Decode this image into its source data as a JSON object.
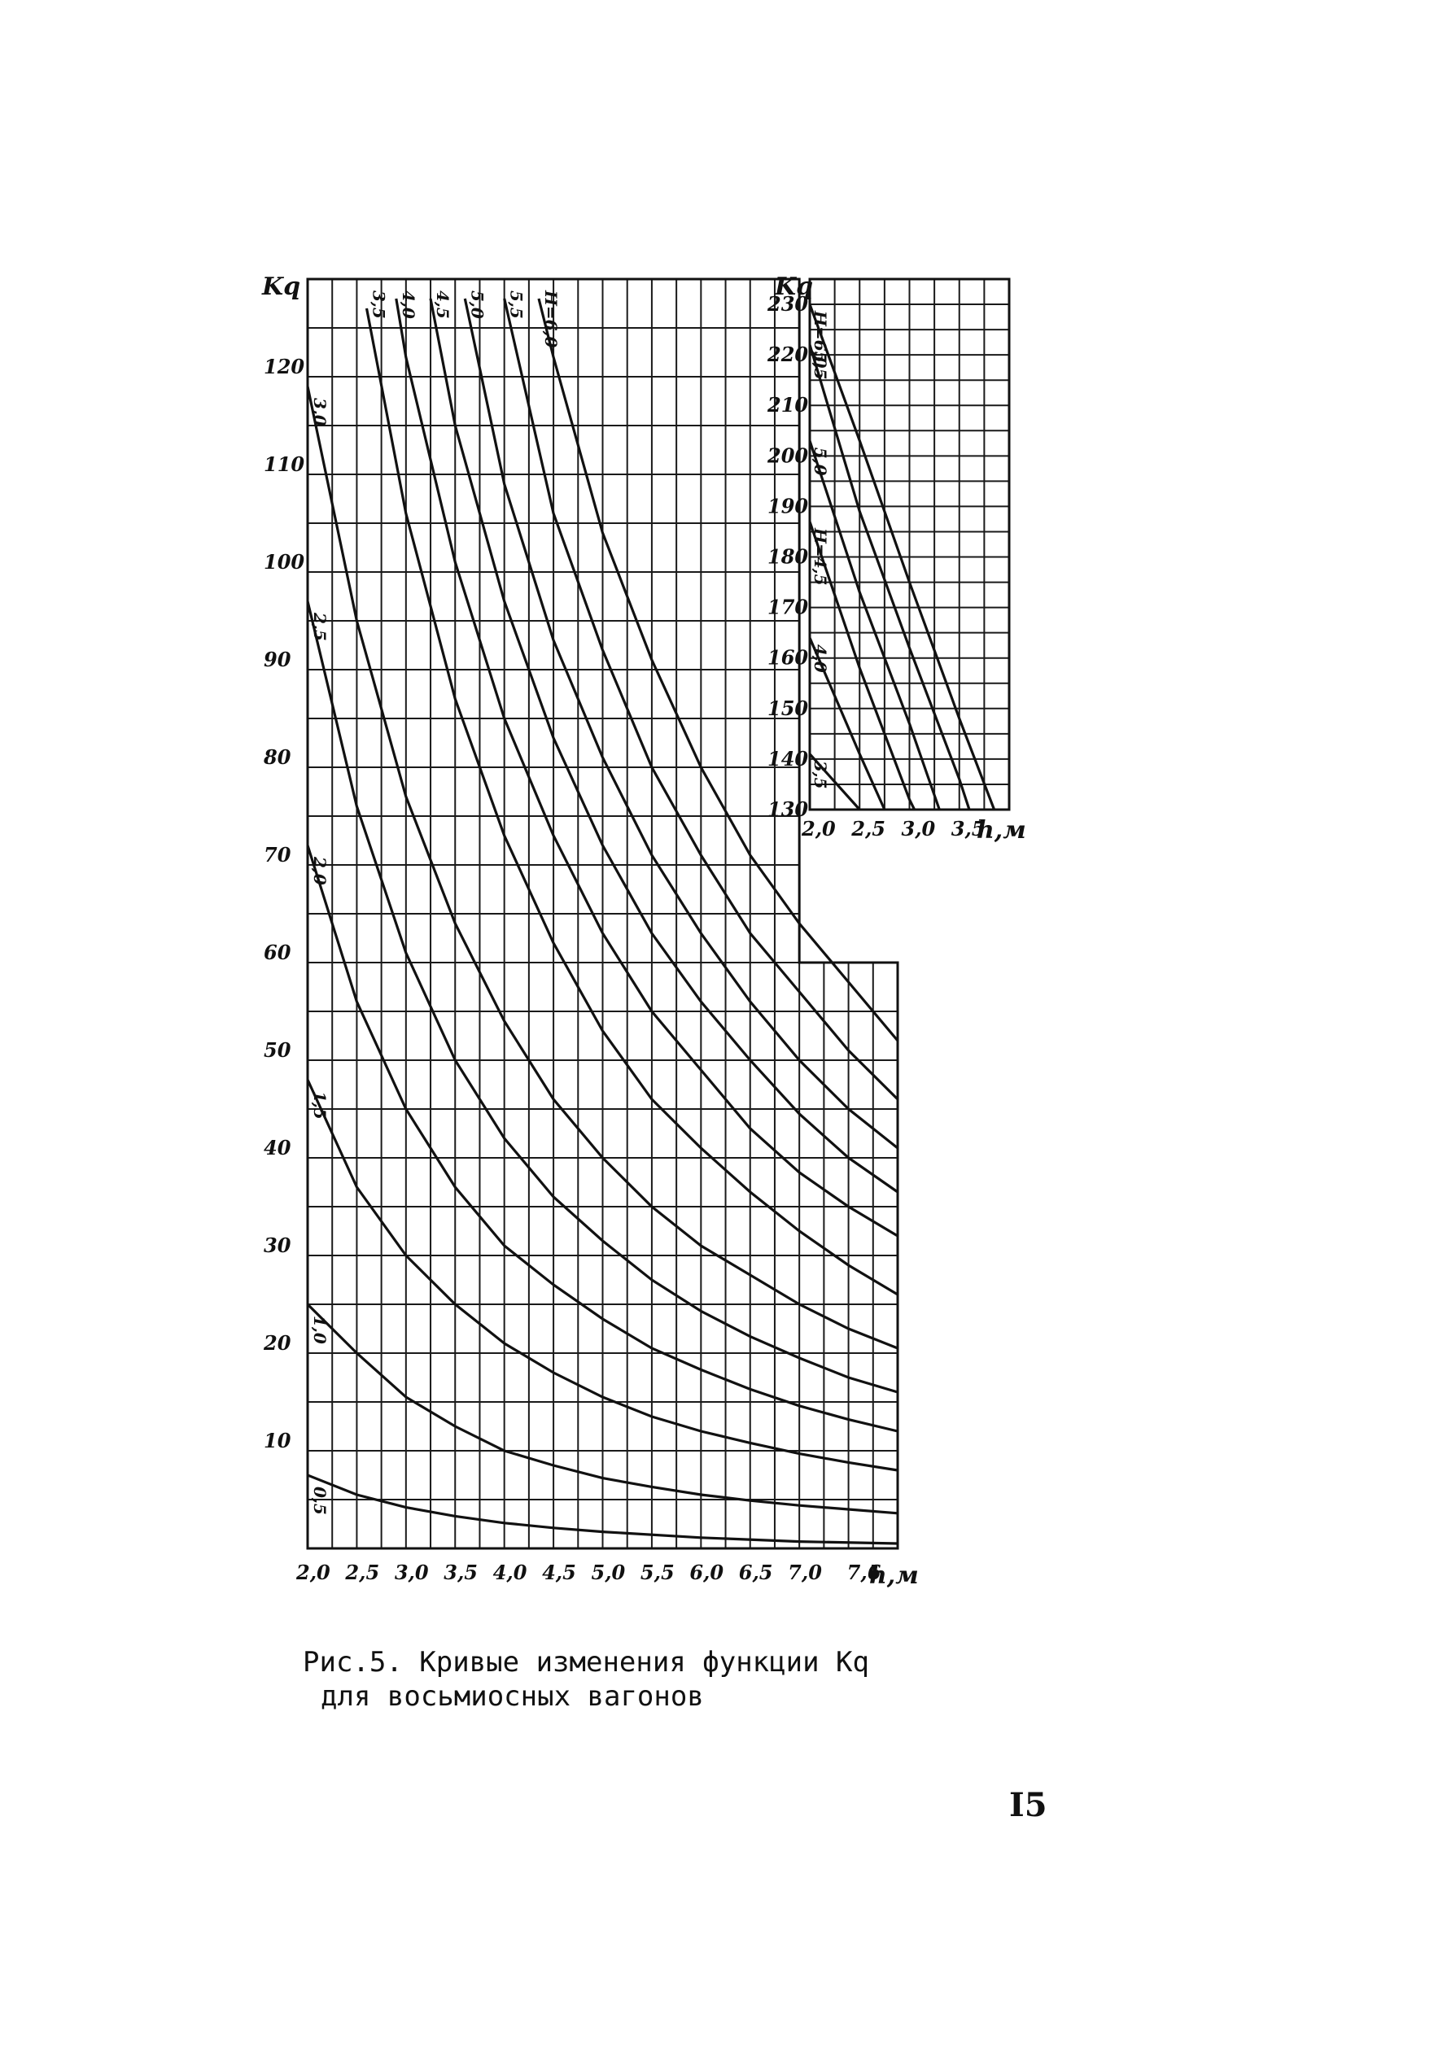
{
  "caption": {
    "line1": "Рис.5. Кривые изменения функции Kq",
    "line2": "для восьмиосных вагонов"
  },
  "page_number": "I5",
  "chart_data": [
    {
      "type": "line",
      "x_ticks": [
        "2,0",
        "2,5",
        "3,0",
        "3,5",
        "4,0",
        "4,5",
        "5,0",
        "5,5",
        "6,0",
        "6,5",
        "7,0",
        "7,6"
      ],
      "y_ticks": [
        "10",
        "20",
        "30",
        "40",
        "50",
        "60",
        "70",
        "80",
        "90",
        "100",
        "110",
        "120"
      ],
      "xlabel": "h,м",
      "ylabel": "Kq",
      "xlim": [
        2.0,
        8.0
      ],
      "ylim": [
        0,
        130
      ],
      "grid": true,
      "series": [
        {
          "name": "0,5",
          "x": [
            2.0,
            2.5,
            3.0,
            3.5,
            4.0,
            4.5,
            5.0,
            6.0,
            7.0,
            8.0
          ],
          "y": [
            7.5,
            5.5,
            4.2,
            3.3,
            2.6,
            2.1,
            1.7,
            1.1,
            0.7,
            0.5
          ]
        },
        {
          "name": "1,0",
          "x": [
            2.0,
            2.5,
            3.0,
            3.5,
            4.0,
            4.5,
            5.0,
            5.5,
            6.0,
            6.5,
            7.0,
            7.5,
            8.0
          ],
          "y": [
            25,
            20,
            15.5,
            12.5,
            10,
            8.5,
            7.2,
            6.3,
            5.5,
            4.9,
            4.4,
            4.0,
            3.6
          ]
        },
        {
          "name": "1,5",
          "x": [
            2.0,
            2.5,
            3.0,
            3.5,
            4.0,
            4.5,
            5.0,
            5.5,
            6.0,
            6.5,
            7.0,
            7.5,
            8.0
          ],
          "y": [
            48,
            37,
            30,
            25,
            21,
            18,
            15.5,
            13.5,
            12,
            10.8,
            9.7,
            8.8,
            8.0
          ]
        },
        {
          "name": "2,0",
          "x": [
            2.0,
            2.5,
            3.0,
            3.5,
            4.0,
            4.5,
            5.0,
            5.5,
            6.0,
            6.5,
            7.0,
            7.5,
            8.0
          ],
          "y": [
            72,
            56,
            45,
            37,
            31,
            27,
            23.5,
            20.5,
            18.3,
            16.3,
            14.6,
            13.2,
            12.0
          ]
        },
        {
          "name": "2,5",
          "x": [
            2.0,
            2.5,
            3.0,
            3.5,
            4.0,
            4.5,
            5.0,
            5.5,
            6.0,
            6.5,
            7.0,
            7.5,
            8.0
          ],
          "y": [
            97,
            76,
            61,
            50,
            42,
            36,
            31.5,
            27.5,
            24.3,
            21.7,
            19.5,
            17.5,
            16.0
          ]
        },
        {
          "name": "3,0",
          "x": [
            2.0,
            2.5,
            3.0,
            3.5,
            4.0,
            4.5,
            5.0,
            5.5,
            6.0,
            6.5,
            7.0,
            7.5,
            8.0
          ],
          "y": [
            119,
            95,
            77,
            64,
            54,
            46,
            40,
            35,
            31,
            28,
            25,
            22.5,
            20.5
          ]
        },
        {
          "name": "3,5",
          "x": [
            2.6,
            3.0,
            3.5,
            4.0,
            4.5,
            5.0,
            5.5,
            6.0,
            6.5,
            7.0,
            7.5,
            8.0
          ],
          "y": [
            127,
            106,
            87,
            73,
            62,
            53,
            46,
            41,
            36.5,
            32.5,
            29,
            26
          ]
        },
        {
          "name": "4,0",
          "x": [
            2.9,
            3.0,
            3.5,
            4.0,
            4.5,
            5.0,
            5.5,
            6.0,
            6.5,
            7.0,
            7.5,
            8.0
          ],
          "y": [
            128,
            122,
            101,
            85,
            73,
            63,
            55,
            49,
            43,
            38.5,
            35,
            32
          ]
        },
        {
          "name": "4,5",
          "x": [
            3.25,
            3.5,
            4.0,
            4.5,
            5.0,
            5.5,
            6.0,
            6.5,
            7.0,
            7.5,
            8.0
          ],
          "y": [
            128,
            115,
            97,
            83,
            72,
            63,
            56,
            50,
            44.5,
            40,
            36.5
          ]
        },
        {
          "name": "5,0",
          "x": [
            3.6,
            4.0,
            4.5,
            5.0,
            5.5,
            6.0,
            6.5,
            7.0,
            7.5,
            8.0
          ],
          "y": [
            128,
            109,
            93,
            81,
            71,
            63,
            56,
            50,
            45,
            41
          ]
        },
        {
          "name": "5,5",
          "x": [
            4.0,
            4.5,
            5.0,
            5.5,
            6.0,
            6.5,
            7.0,
            7.5,
            8.0
          ],
          "y": [
            128,
            106,
            92,
            80,
            71,
            63,
            57,
            51,
            46
          ]
        },
        {
          "name": "H=6,0",
          "x": [
            4.35,
            4.5,
            5.0,
            5.5,
            6.0,
            6.5,
            7.0,
            7.5,
            8.0
          ],
          "y": [
            128,
            122,
            104,
            91,
            80,
            71,
            64,
            58,
            52
          ]
        }
      ]
    },
    {
      "type": "line",
      "x_ticks": [
        "2,0",
        "2,5",
        "3,0",
        "3,5"
      ],
      "y_ticks": [
        "130",
        "140",
        "150",
        "160",
        "170",
        "180",
        "190",
        "200",
        "210",
        "220",
        "230"
      ],
      "xlabel": "h,м",
      "ylabel": "Kq",
      "xlim": [
        2.0,
        4.0
      ],
      "ylim": [
        130,
        235
      ],
      "grid": true,
      "series": [
        {
          "name": "3,5",
          "x": [
            2.0,
            2.5
          ],
          "y": [
            141,
            130
          ]
        },
        {
          "name": "4,0",
          "x": [
            2.0,
            2.5,
            2.75
          ],
          "y": [
            164,
            141,
            130
          ]
        },
        {
          "name": "H=4,5",
          "x": [
            2.0,
            2.5,
            3.0,
            3.05
          ],
          "y": [
            187,
            158,
            132,
            130
          ]
        },
        {
          "name": "5,0",
          "x": [
            2.0,
            2.5,
            3.0,
            3.3
          ],
          "y": [
            203,
            173,
            147,
            130
          ]
        },
        {
          "name": "5,5",
          "x": [
            2.0,
            2.5,
            3.0,
            3.5,
            3.6
          ],
          "y": [
            222,
            189,
            162,
            136,
            130
          ]
        },
        {
          "name": "H=6,0",
          "x": [
            2.0,
            2.5,
            3.0,
            3.5,
            3.85
          ],
          "y": [
            230,
            203,
            175,
            148,
            130
          ]
        }
      ]
    }
  ]
}
